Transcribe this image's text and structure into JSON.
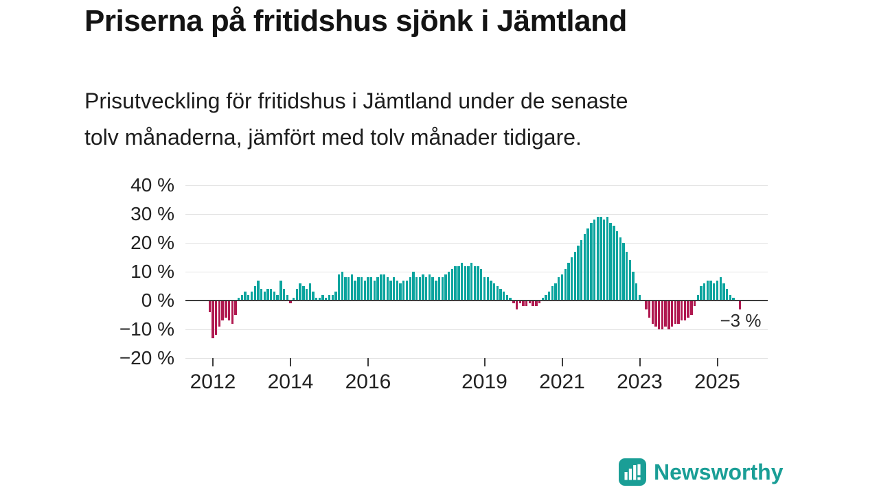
{
  "title": "Priserna på fritidshus sjönk i Jämtland",
  "subtitle": {
    "lines": [
      "Prisutveckling för fritidshus i Jämtland under de senaste",
      "tolv månaderna, jämfört med tolv månader tidigare."
    ]
  },
  "branding": {
    "name": "Newsworthy",
    "icon": "bar-chart-logo-icon",
    "color": "#1a9e96"
  },
  "colors": {
    "positive": "#0aa49e",
    "negative": "#b01950",
    "zero_line": "#3d3d3d",
    "gridline": "#e4e4e4",
    "text": "#1d1d1d"
  },
  "chart_data": {
    "type": "bar",
    "title": "Prisutveckling för fritidshus i Jämtland, tolvmånadersförändring",
    "unit": "%",
    "frequency": "monthly",
    "start": "2011-12",
    "xlabel": "",
    "ylabel": "",
    "grid": "horizontal",
    "y_ticks": [
      "40 %",
      "30 %",
      "20 %",
      "10 %",
      "0 %",
      "−10 %",
      "−20 %"
    ],
    "y_tick_values": [
      40,
      30,
      20,
      10,
      0,
      -10,
      -20
    ],
    "ylim": [
      -20,
      45
    ],
    "x_ticks": [
      2012,
      2014,
      2016,
      2019,
      2021,
      2023,
      2025
    ],
    "annotation": "−3 %",
    "annotation_value": -3,
    "values": [
      -4,
      -13,
      -12,
      -9,
      -7,
      -6,
      -7,
      -8,
      -5,
      1,
      2,
      3,
      2,
      3,
      5,
      7,
      4,
      3,
      4,
      4,
      3,
      2,
      7,
      4,
      2,
      -1,
      1,
      4,
      6,
      5,
      4,
      6,
      3,
      1,
      1,
      2,
      1,
      2,
      2,
      3,
      9,
      10,
      8,
      8,
      9,
      7,
      8,
      8,
      7,
      8,
      8,
      7,
      8,
      9,
      9,
      8,
      7,
      8,
      7,
      6,
      7,
      7,
      8,
      10,
      8,
      8,
      9,
      8,
      9,
      8,
      7,
      8,
      8,
      9,
      10,
      11,
      12,
      12,
      13,
      12,
      12,
      13,
      12,
      12,
      11,
      8,
      8,
      7,
      6,
      5,
      4,
      3,
      2,
      1,
      -1,
      -3,
      -1,
      -2,
      -2,
      -1,
      -2,
      -2,
      -1,
      1,
      2,
      3,
      5,
      6,
      8,
      9,
      11,
      13,
      15,
      17,
      19,
      21,
      23,
      25,
      27,
      28,
      29,
      29,
      28,
      29,
      27,
      26,
      24,
      22,
      20,
      17,
      14,
      10,
      6,
      2,
      0,
      -3,
      -6,
      -8,
      -9,
      -10,
      -10,
      -9,
      -10,
      -9,
      -8,
      -8,
      -7,
      -7,
      -6,
      -5,
      -2,
      2,
      5,
      6,
      7,
      7,
      6,
      7,
      8,
      6,
      4,
      2,
      1,
      0,
      -3
    ]
  }
}
